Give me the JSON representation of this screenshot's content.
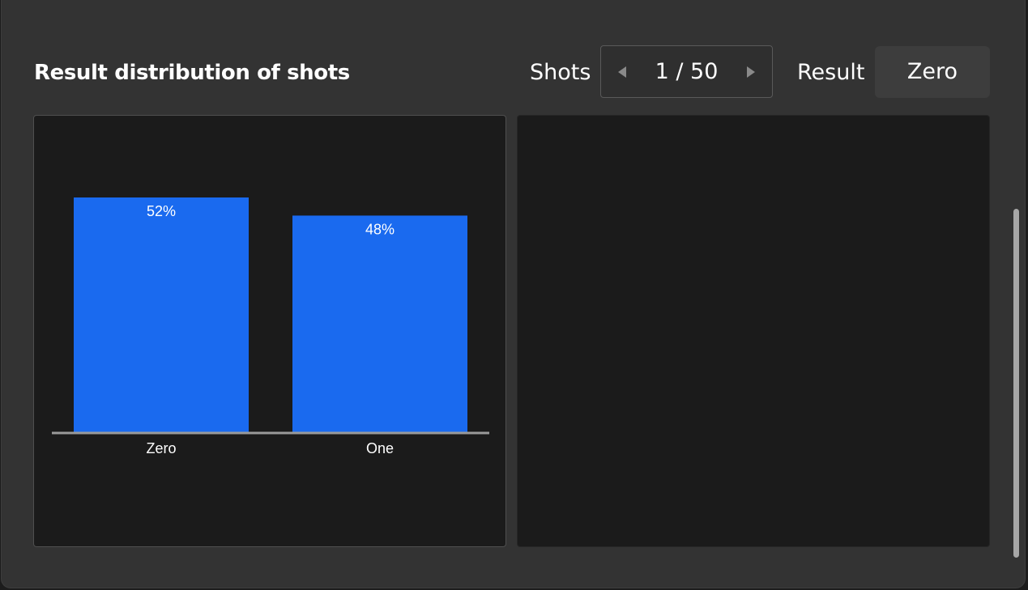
{
  "header": {
    "title": "Result distribution of shots",
    "shots_label": "Shots",
    "shots_value": "1 / 50",
    "result_label": "Result",
    "result_value": "Zero"
  },
  "icons": {
    "prev": "caret-left-icon",
    "next": "caret-right-icon"
  },
  "colors": {
    "bar": "#1a6aef",
    "panel": "#333333",
    "card": "#1b1b1b",
    "axis": "#9a9a9a"
  },
  "chart_data": {
    "type": "bar",
    "categories": [
      "Zero",
      "One"
    ],
    "values": [
      52,
      48
    ],
    "data_labels": [
      "52%",
      "48%"
    ],
    "ylim": [
      0,
      52
    ],
    "grid": false
  }
}
